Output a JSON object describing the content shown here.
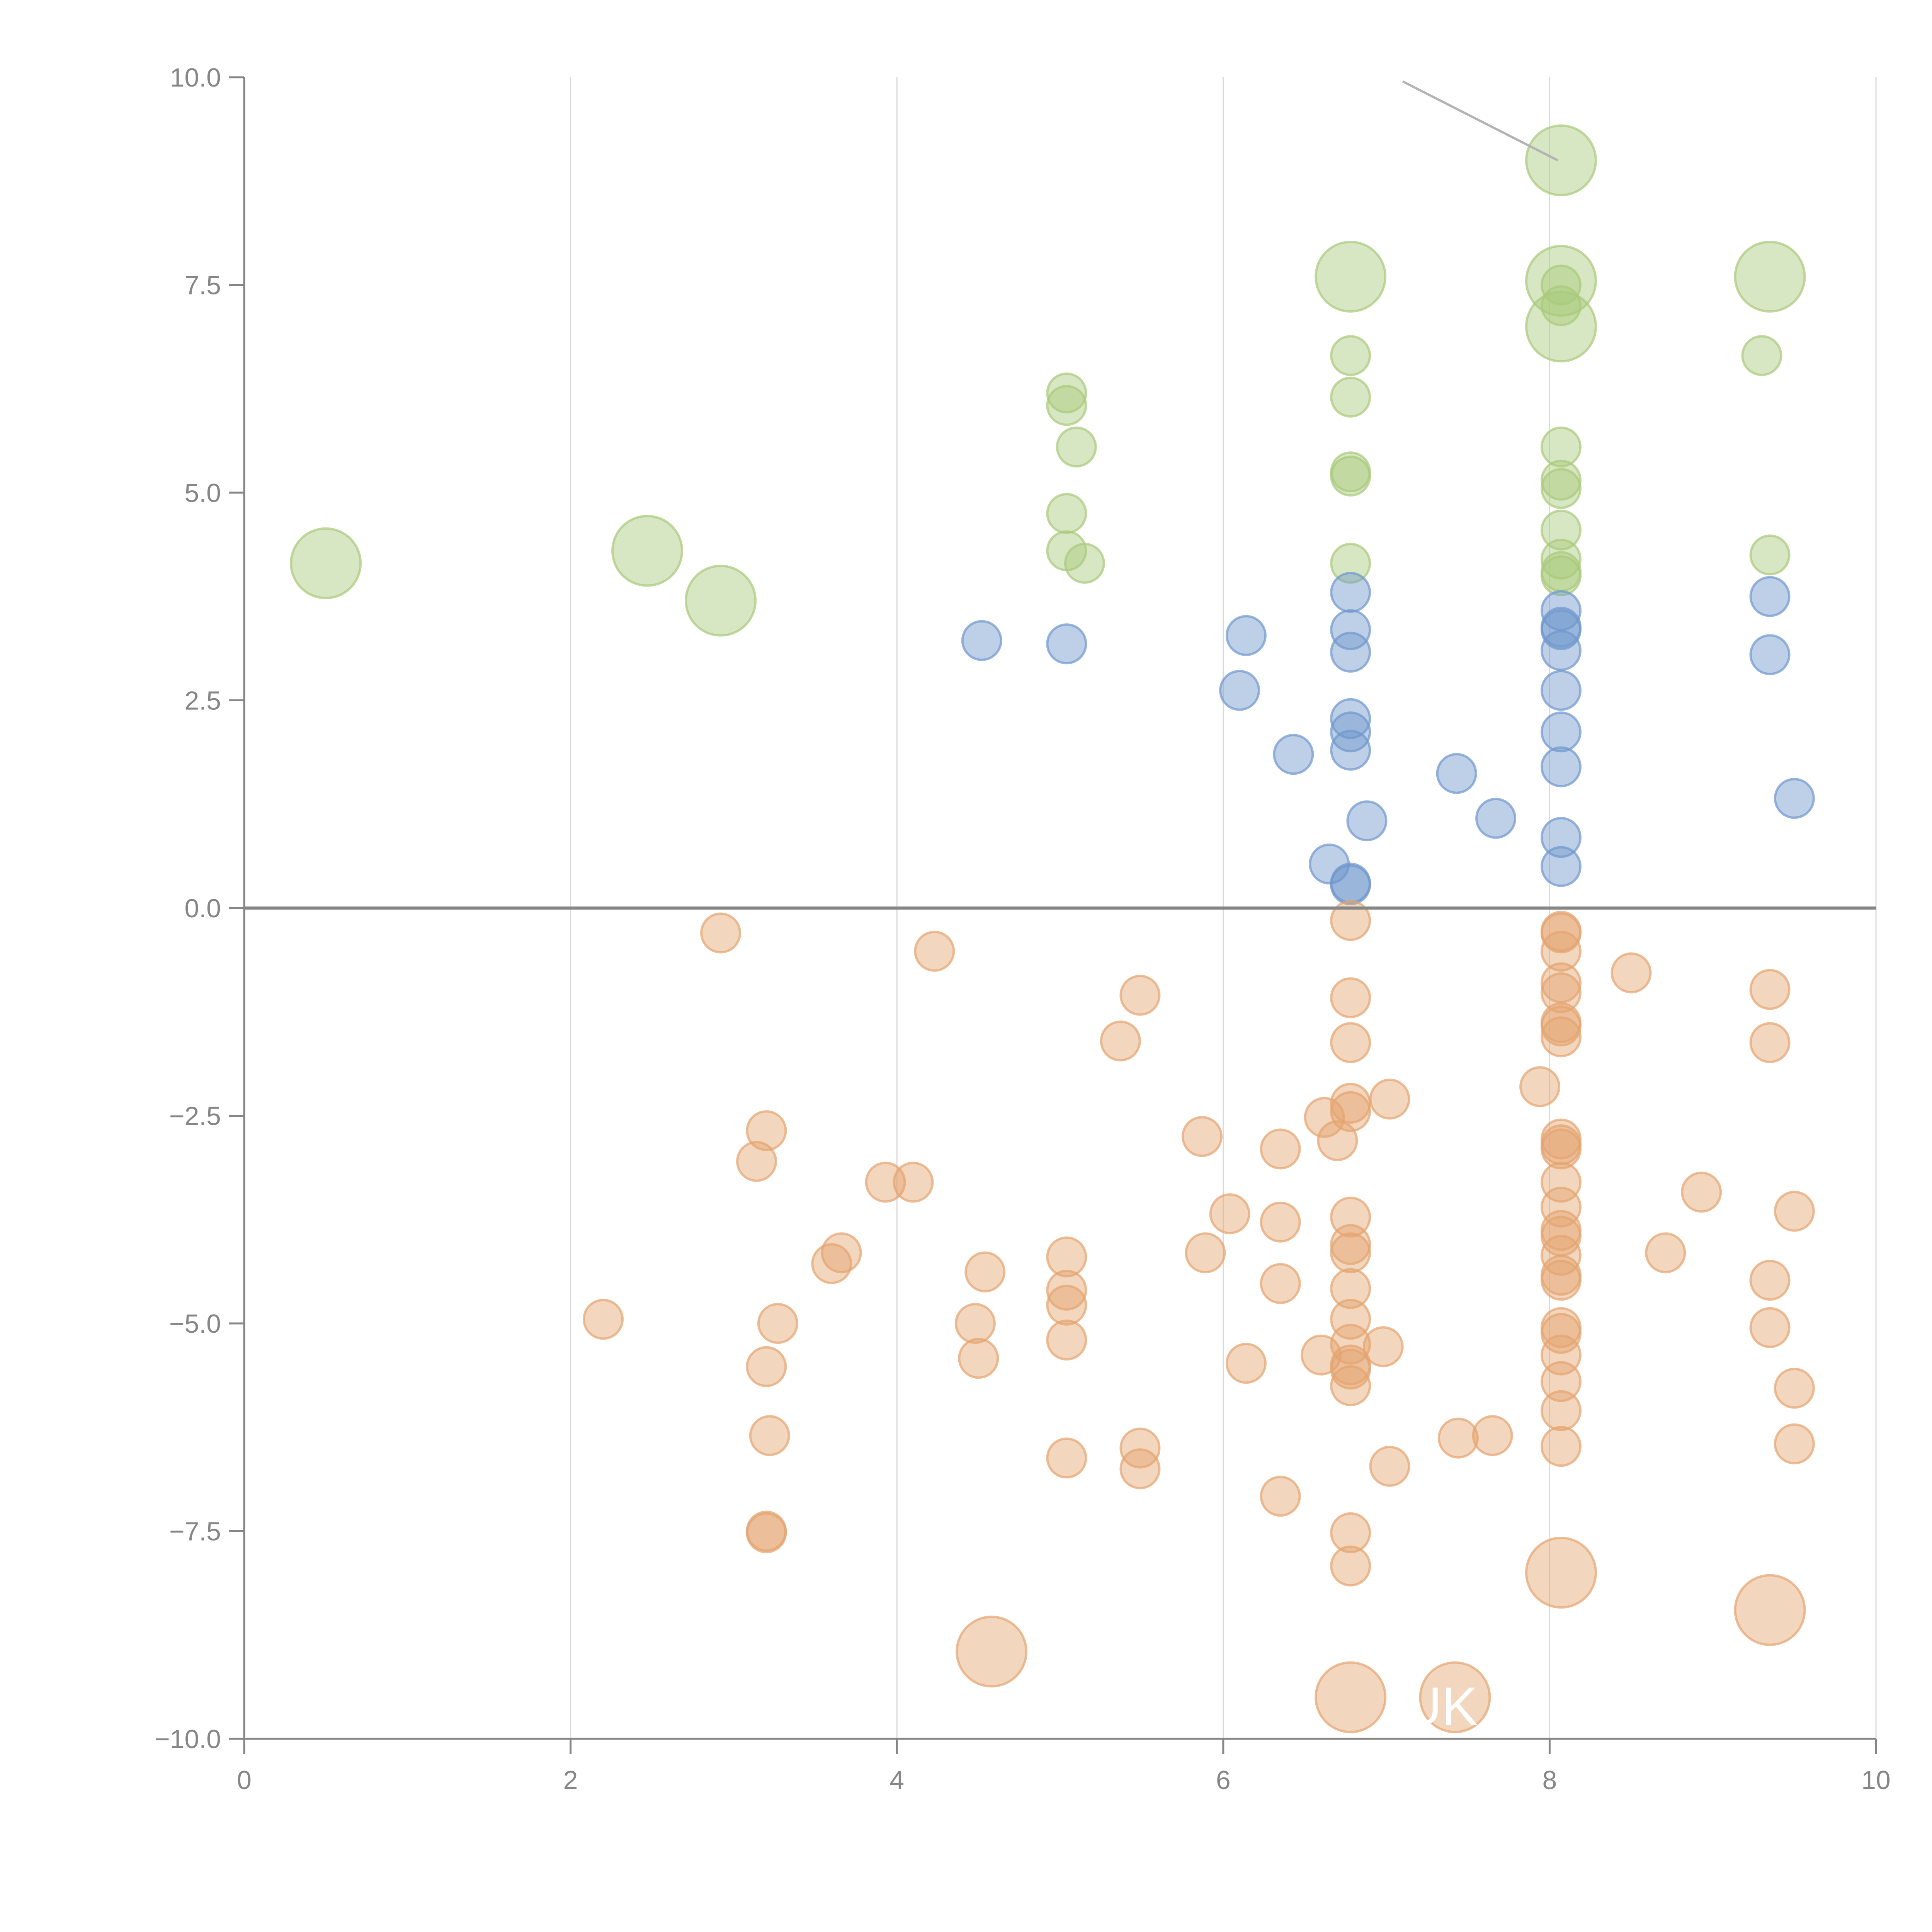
{
  "chart_data": {
    "type": "scatter",
    "subtype": "bubble",
    "title": "",
    "xlabel": "",
    "ylabel": "",
    "xlim": [
      0,
      10
    ],
    "ylim": [
      -10,
      10
    ],
    "x_ticks": [
      "0",
      "2",
      "4",
      "6",
      "8",
      "10"
    ],
    "y_ticks": [
      "10.0",
      "7.5",
      "5.0",
      "2.5",
      "0.0",
      "−2.5",
      "−5.0",
      "−7.5",
      "−10.0"
    ],
    "x_tick_values": [
      0,
      2,
      4,
      6,
      8,
      10
    ],
    "y_tick_values": [
      10,
      7.5,
      5,
      2.5,
      0,
      -2.5,
      -5,
      -7.5,
      -10
    ],
    "grid": "vertical",
    "zero_line": true,
    "colors": {
      "green": "#a9c97a",
      "blue": "#6f97cd",
      "orange": "#e4a46f",
      "axis": "#868686",
      "grid": "#d9d9d9"
    },
    "labels": [
      {
        "text": "UK",
        "x": 7.1,
        "y": -9.6
      }
    ],
    "series": [
      {
        "name": "green",
        "points": [
          {
            "x": 0.5,
            "y": 4.15,
            "size": "large"
          },
          {
            "x": 2.47,
            "y": 4.3,
            "size": "large"
          },
          {
            "x": 2.92,
            "y": 3.7,
            "size": "large"
          },
          {
            "x": 5.04,
            "y": 6.2,
            "size": "small"
          },
          {
            "x": 5.04,
            "y": 6.05,
            "size": "small"
          },
          {
            "x": 5.1,
            "y": 5.55,
            "size": "small"
          },
          {
            "x": 5.04,
            "y": 4.75,
            "size": "small"
          },
          {
            "x": 5.04,
            "y": 4.3,
            "size": "small"
          },
          {
            "x": 5.15,
            "y": 4.15,
            "size": "small"
          },
          {
            "x": 6.78,
            "y": 7.6,
            "size": "large"
          },
          {
            "x": 6.78,
            "y": 6.65,
            "size": "small"
          },
          {
            "x": 6.78,
            "y": 6.15,
            "size": "small"
          },
          {
            "x": 6.78,
            "y": 5.25,
            "size": "small"
          },
          {
            "x": 6.78,
            "y": 5.2,
            "size": "small"
          },
          {
            "x": 6.78,
            "y": 4.15,
            "size": "small"
          },
          {
            "x": 8.07,
            "y": 9.0,
            "size": "large"
          },
          {
            "x": 8.07,
            "y": 7.55,
            "size": "large"
          },
          {
            "x": 8.07,
            "y": 7.5,
            "size": "small"
          },
          {
            "x": 8.07,
            "y": 7.25,
            "size": "small"
          },
          {
            "x": 8.07,
            "y": 7.0,
            "size": "large"
          },
          {
            "x": 8.07,
            "y": 5.55,
            "size": "small"
          },
          {
            "x": 8.07,
            "y": 5.15,
            "size": "small"
          },
          {
            "x": 8.07,
            "y": 5.05,
            "size": "small"
          },
          {
            "x": 8.07,
            "y": 4.55,
            "size": "small"
          },
          {
            "x": 8.07,
            "y": 4.2,
            "size": "small"
          },
          {
            "x": 8.07,
            "y": 4.05,
            "size": "small"
          },
          {
            "x": 8.07,
            "y": 4.0,
            "size": "small"
          },
          {
            "x": 9.35,
            "y": 7.6,
            "size": "large"
          },
          {
            "x": 9.3,
            "y": 6.65,
            "size": "small"
          },
          {
            "x": 9.35,
            "y": 4.25,
            "size": "small"
          }
        ]
      },
      {
        "name": "blue",
        "points": [
          {
            "x": 4.52,
            "y": 3.22,
            "size": "small"
          },
          {
            "x": 5.04,
            "y": 3.18,
            "size": "small"
          },
          {
            "x": 6.1,
            "y": 2.62,
            "size": "small"
          },
          {
            "x": 6.14,
            "y": 3.28,
            "size": "small"
          },
          {
            "x": 6.43,
            "y": 1.85,
            "size": "small"
          },
          {
            "x": 6.78,
            "y": 3.8,
            "size": "small"
          },
          {
            "x": 6.78,
            "y": 3.35,
            "size": "small"
          },
          {
            "x": 6.78,
            "y": 3.08,
            "size": "small"
          },
          {
            "x": 6.78,
            "y": 2.28,
            "size": "small"
          },
          {
            "x": 6.78,
            "y": 2.12,
            "size": "small"
          },
          {
            "x": 6.78,
            "y": 1.9,
            "size": "small"
          },
          {
            "x": 6.88,
            "y": 1.05,
            "size": "small"
          },
          {
            "x": 6.65,
            "y": 0.53,
            "size": "small"
          },
          {
            "x": 6.78,
            "y": 0.3,
            "size": "small"
          },
          {
            "x": 6.78,
            "y": 0.28,
            "size": "small"
          },
          {
            "x": 7.43,
            "y": 1.62,
            "size": "small"
          },
          {
            "x": 7.67,
            "y": 1.08,
            "size": "small"
          },
          {
            "x": 8.07,
            "y": 3.58,
            "size": "small"
          },
          {
            "x": 8.07,
            "y": 3.38,
            "size": "small"
          },
          {
            "x": 8.07,
            "y": 3.35,
            "size": "small"
          },
          {
            "x": 8.07,
            "y": 3.1,
            "size": "small"
          },
          {
            "x": 8.07,
            "y": 2.62,
            "size": "small"
          },
          {
            "x": 8.07,
            "y": 2.12,
            "size": "small"
          },
          {
            "x": 8.07,
            "y": 1.7,
            "size": "small"
          },
          {
            "x": 8.07,
            "y": 0.85,
            "size": "small"
          },
          {
            "x": 8.07,
            "y": 0.5,
            "size": "small"
          },
          {
            "x": 9.35,
            "y": 3.75,
            "size": "small"
          },
          {
            "x": 9.35,
            "y": 3.05,
            "size": "small"
          },
          {
            "x": 9.5,
            "y": 1.32,
            "size": "small"
          }
        ]
      },
      {
        "name": "orange",
        "points": [
          {
            "x": 2.92,
            "y": -0.3,
            "size": "small"
          },
          {
            "x": 4.23,
            "y": -0.52,
            "size": "small"
          },
          {
            "x": 5.49,
            "y": -1.05,
            "size": "small"
          },
          {
            "x": 5.37,
            "y": -1.6,
            "size": "small"
          },
          {
            "x": 3.2,
            "y": -2.68,
            "size": "small"
          },
          {
            "x": 3.14,
            "y": -3.05,
            "size": "small"
          },
          {
            "x": 3.93,
            "y": -3.3,
            "size": "small"
          },
          {
            "x": 4.1,
            "y": -3.3,
            "size": "small"
          },
          {
            "x": 3.66,
            "y": -4.15,
            "size": "small"
          },
          {
            "x": 3.6,
            "y": -4.28,
            "size": "small"
          },
          {
            "x": 2.2,
            "y": -4.95,
            "size": "small"
          },
          {
            "x": 3.27,
            "y": -5.0,
            "size": "small"
          },
          {
            "x": 3.2,
            "y": -5.52,
            "size": "small"
          },
          {
            "x": 3.22,
            "y": -6.35,
            "size": "small"
          },
          {
            "x": 3.2,
            "y": -7.5,
            "size": "small"
          },
          {
            "x": 3.2,
            "y": -7.52,
            "size": "small"
          },
          {
            "x": 4.54,
            "y": -4.38,
            "size": "small"
          },
          {
            "x": 4.48,
            "y": -5.0,
            "size": "small"
          },
          {
            "x": 4.5,
            "y": -5.42,
            "size": "small"
          },
          {
            "x": 4.58,
            "y": -8.95,
            "size": "large"
          },
          {
            "x": 5.04,
            "y": -4.2,
            "size": "small"
          },
          {
            "x": 5.04,
            "y": -4.6,
            "size": "small"
          },
          {
            "x": 5.04,
            "y": -4.78,
            "size": "small"
          },
          {
            "x": 5.04,
            "y": -5.2,
            "size": "small"
          },
          {
            "x": 5.04,
            "y": -6.62,
            "size": "small"
          },
          {
            "x": 5.49,
            "y": -6.5,
            "size": "small"
          },
          {
            "x": 5.49,
            "y": -6.75,
            "size": "small"
          },
          {
            "x": 5.87,
            "y": -2.75,
            "size": "small"
          },
          {
            "x": 5.89,
            "y": -4.15,
            "size": "small"
          },
          {
            "x": 6.04,
            "y": -3.68,
            "size": "small"
          },
          {
            "x": 6.14,
            "y": -5.48,
            "size": "small"
          },
          {
            "x": 6.35,
            "y": -2.9,
            "size": "small"
          },
          {
            "x": 6.35,
            "y": -3.78,
            "size": "small"
          },
          {
            "x": 6.35,
            "y": -4.52,
            "size": "small"
          },
          {
            "x": 6.35,
            "y": -7.08,
            "size": "small"
          },
          {
            "x": 6.62,
            "y": -2.52,
            "size": "small"
          },
          {
            "x": 6.7,
            "y": -2.8,
            "size": "small"
          },
          {
            "x": 6.6,
            "y": -5.38,
            "size": "small"
          },
          {
            "x": 6.78,
            "y": -0.15,
            "size": "small"
          },
          {
            "x": 6.78,
            "y": -1.08,
            "size": "small"
          },
          {
            "x": 6.78,
            "y": -1.62,
            "size": "small"
          },
          {
            "x": 6.78,
            "y": -2.35,
            "size": "small"
          },
          {
            "x": 6.78,
            "y": -2.45,
            "size": "small"
          },
          {
            "x": 6.78,
            "y": -3.72,
            "size": "small"
          },
          {
            "x": 6.78,
            "y": -4.05,
            "size": "small"
          },
          {
            "x": 6.78,
            "y": -4.15,
            "size": "small"
          },
          {
            "x": 6.78,
            "y": -4.58,
            "size": "small"
          },
          {
            "x": 6.78,
            "y": -4.95,
            "size": "small"
          },
          {
            "x": 6.78,
            "y": -5.25,
            "size": "small"
          },
          {
            "x": 6.78,
            "y": -5.5,
            "size": "small"
          },
          {
            "x": 6.78,
            "y": -5.55,
            "size": "small"
          },
          {
            "x": 6.78,
            "y": -5.75,
            "size": "small"
          },
          {
            "x": 6.78,
            "y": -7.52,
            "size": "small"
          },
          {
            "x": 6.78,
            "y": -7.92,
            "size": "small"
          },
          {
            "x": 6.78,
            "y": -9.5,
            "size": "large"
          },
          {
            "x": 7.02,
            "y": -2.3,
            "size": "small"
          },
          {
            "x": 6.98,
            "y": -5.28,
            "size": "small"
          },
          {
            "x": 7.02,
            "y": -6.72,
            "size": "small"
          },
          {
            "x": 7.44,
            "y": -6.38,
            "size": "small"
          },
          {
            "x": 7.65,
            "y": -6.35,
            "size": "small"
          },
          {
            "x": 7.42,
            "y": -9.5,
            "size": "large"
          },
          {
            "x": 7.94,
            "y": -2.15,
            "size": "small"
          },
          {
            "x": 8.07,
            "y": -0.28,
            "size": "small"
          },
          {
            "x": 8.07,
            "y": -0.3,
            "size": "small"
          },
          {
            "x": 8.07,
            "y": -0.52,
            "size": "small"
          },
          {
            "x": 8.07,
            "y": -0.9,
            "size": "small"
          },
          {
            "x": 8.07,
            "y": -1.02,
            "size": "small"
          },
          {
            "x": 8.07,
            "y": -1.38,
            "size": "small"
          },
          {
            "x": 8.07,
            "y": -1.42,
            "size": "small"
          },
          {
            "x": 8.07,
            "y": -1.55,
            "size": "small"
          },
          {
            "x": 8.07,
            "y": -2.78,
            "size": "small"
          },
          {
            "x": 8.07,
            "y": -2.85,
            "size": "small"
          },
          {
            "x": 8.07,
            "y": -2.9,
            "size": "small"
          },
          {
            "x": 8.07,
            "y": -3.3,
            "size": "small"
          },
          {
            "x": 8.07,
            "y": -3.6,
            "size": "small"
          },
          {
            "x": 8.07,
            "y": -3.88,
            "size": "small"
          },
          {
            "x": 8.07,
            "y": -3.95,
            "size": "small"
          },
          {
            "x": 8.07,
            "y": -4.18,
            "size": "small"
          },
          {
            "x": 8.07,
            "y": -4.42,
            "size": "small"
          },
          {
            "x": 8.07,
            "y": -4.48,
            "size": "small"
          },
          {
            "x": 8.07,
            "y": -5.05,
            "size": "small"
          },
          {
            "x": 8.07,
            "y": -5.12,
            "size": "small"
          },
          {
            "x": 8.07,
            "y": -5.38,
            "size": "small"
          },
          {
            "x": 8.07,
            "y": -5.7,
            "size": "small"
          },
          {
            "x": 8.07,
            "y": -6.05,
            "size": "small"
          },
          {
            "x": 8.07,
            "y": -6.48,
            "size": "small"
          },
          {
            "x": 8.07,
            "y": -8.0,
            "size": "large"
          },
          {
            "x": 8.5,
            "y": -0.78,
            "size": "small"
          },
          {
            "x": 8.71,
            "y": -4.15,
            "size": "small"
          },
          {
            "x": 8.93,
            "y": -3.42,
            "size": "small"
          },
          {
            "x": 9.35,
            "y": -0.98,
            "size": "small"
          },
          {
            "x": 9.35,
            "y": -1.62,
            "size": "small"
          },
          {
            "x": 9.35,
            "y": -4.48,
            "size": "small"
          },
          {
            "x": 9.35,
            "y": -5.05,
            "size": "small"
          },
          {
            "x": 9.35,
            "y": -8.45,
            "size": "large"
          },
          {
            "x": 9.5,
            "y": -3.65,
            "size": "small"
          },
          {
            "x": 9.5,
            "y": -5.78,
            "size": "small"
          },
          {
            "x": 9.5,
            "y": -6.45,
            "size": "small"
          }
        ]
      }
    ]
  }
}
